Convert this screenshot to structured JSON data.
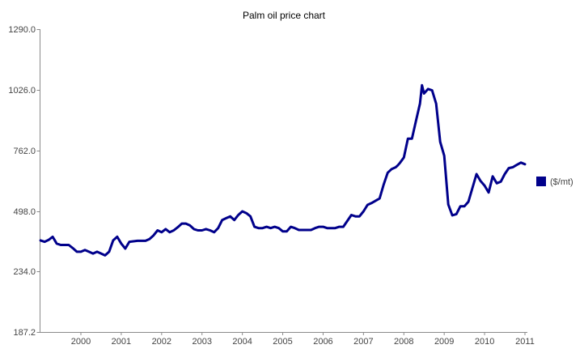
{
  "chart_data": {
    "type": "line",
    "title": "Palm oil  price chart",
    "xlabel": "",
    "ylabel": "",
    "yticks": [
      "187.2",
      "234.0",
      "498.0",
      "762.0",
      "1026.0",
      "1290.0"
    ],
    "xticks": [
      "2000",
      "2001",
      "2002",
      "2003",
      "2004",
      "2005",
      "2006",
      "2007",
      "2008",
      "2009",
      "2010",
      "2011"
    ],
    "legend_position": "right",
    "grid": false,
    "colors": {
      "series": "#00008b",
      "axis": "#8a8a8a"
    },
    "series": [
      {
        "name": "($/mt)",
        "x": [
          1999.0,
          1999.1,
          1999.2,
          1999.3,
          1999.4,
          1999.5,
          1999.7,
          1999.8,
          1999.9,
          2000.0,
          2000.1,
          2000.2,
          2000.3,
          2000.4,
          2000.5,
          2000.6,
          2000.7,
          2000.8,
          2000.9,
          2001.0,
          2001.1,
          2001.2,
          2001.4,
          2001.5,
          2001.6,
          2001.7,
          2001.8,
          2001.9,
          2002.0,
          2002.1,
          2002.2,
          2002.3,
          2002.4,
          2002.5,
          2002.6,
          2002.7,
          2002.8,
          2002.9,
          2003.0,
          2003.1,
          2003.2,
          2003.3,
          2003.4,
          2003.5,
          2003.6,
          2003.7,
          2003.8,
          2003.9,
          2004.0,
          2004.1,
          2004.2,
          2004.3,
          2004.4,
          2004.5,
          2004.6,
          2004.7,
          2004.8,
          2004.9,
          2005.0,
          2005.1,
          2005.2,
          2005.3,
          2005.4,
          2005.5,
          2005.6,
          2005.7,
          2005.8,
          2005.9,
          2006.0,
          2006.1,
          2006.2,
          2006.3,
          2006.4,
          2006.5,
          2006.7,
          2006.8,
          2006.9,
          2007.0,
          2007.1,
          2007.2,
          2007.3,
          2007.4,
          2007.5,
          2007.6,
          2007.7,
          2007.8,
          2007.85,
          2007.9,
          2008.0,
          2008.1,
          2008.2,
          2008.3,
          2008.4,
          2008.45,
          2008.5,
          2008.6,
          2008.7,
          2008.8,
          2008.9,
          2009.0,
          2009.1,
          2009.2,
          2009.3,
          2009.4,
          2009.5,
          2009.6,
          2009.7,
          2009.8,
          2009.9,
          2010.0,
          2010.1,
          2010.2,
          2010.3,
          2010.4,
          2010.5,
          2010.6,
          2010.7,
          2010.8,
          2010.9,
          2011.0
        ],
        "y": [
          370,
          364,
          372,
          386,
          356,
          350,
          350,
          336,
          320,
          320,
          328,
          320,
          312,
          320,
          312,
          304,
          320,
          370,
          386,
          356,
          334,
          364,
          368,
          368,
          368,
          376,
          392,
          414,
          406,
          420,
          406,
          414,
          428,
          444,
          444,
          436,
          420,
          414,
          414,
          420,
          414,
          406,
          424,
          460,
          468,
          476,
          460,
          482,
          498,
          490,
          476,
          430,
          424,
          424,
          430,
          424,
          430,
          424,
          410,
          410,
          430,
          424,
          416,
          416,
          416,
          416,
          424,
          430,
          430,
          424,
          424,
          424,
          430,
          430,
          482,
          476,
          476,
          498,
          526,
          534,
          544,
          554,
          614,
          666,
          682,
          690,
          698,
          708,
          732,
          814,
          814,
          890,
          966,
          1046,
          1010,
          1030,
          1024,
          966,
          800,
          740,
          528,
          480,
          486,
          520,
          520,
          540,
          600,
          660,
          630,
          610,
          580,
          650,
          620,
          627,
          660,
          686,
          690,
          700,
          710,
          703
        ]
      }
    ]
  }
}
